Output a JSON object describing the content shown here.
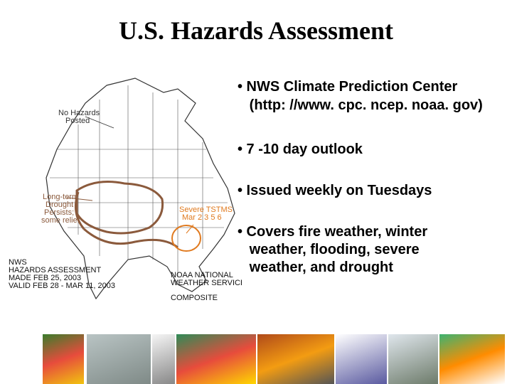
{
  "title": "U.S. Hazards Assessment",
  "bullets": [
    {
      "text": "• NWS Climate Prediction Center"
    },
    {
      "text": "   (http: //www. cpc. ncep. noaa. gov)"
    },
    {
      "text": "• 7 -10 day outlook"
    },
    {
      "text": "• Issued weekly on Tuesdays"
    },
    {
      "text": "• Covers fire weather, winter"
    },
    {
      "text": "   weather, flooding, severe"
    },
    {
      "text": "   weather, and drought"
    }
  ],
  "map": {
    "no_hazards": [
      "No Hazards",
      "Posted"
    ],
    "drought": [
      "Long-term",
      "Drought",
      "Persists;",
      "some relief"
    ],
    "severe": [
      "Severe TSTMS",
      "Mar 2 3 5 6"
    ],
    "nws_block": [
      "NWS",
      "HAZARDS ASSESSMENT",
      "MADE  FEB 25, 2003",
      "VALID  FEB 28 - MAR 11, 2003"
    ],
    "noaa": [
      "NOAA NATIONAL",
      "WEATHER SERVICE"
    ],
    "composite": "COMPOSITE",
    "colors": {
      "drought": "#8b5a3c",
      "severe": "#e07a1f",
      "land": "#ffffff",
      "border": "#333333"
    }
  },
  "thumbnails": [
    {
      "name": "radar-composite",
      "colors": [
        "#3a7d2c",
        "#e74c3c",
        "#f1c40f"
      ]
    },
    {
      "name": "cloud-sky",
      "colors": [
        "#b9c4c4",
        "#7f8a87"
      ]
    },
    {
      "name": "legend-chart",
      "colors": [
        "#f5f5f5",
        "#888888"
      ]
    },
    {
      "name": "radar-storm",
      "colors": [
        "#2e8b57",
        "#e74c3c",
        "#ffd700"
      ]
    },
    {
      "name": "wildfire-photo",
      "colors": [
        "#b04a1a",
        "#f39c12",
        "#555555"
      ]
    },
    {
      "name": "isobar-map",
      "colors": [
        "#ffffff",
        "#5a5aa0"
      ]
    },
    {
      "name": "tower-photo",
      "colors": [
        "#dfe6ec",
        "#6d7b6a"
      ]
    },
    {
      "name": "spread-map",
      "colors": [
        "#3cb371",
        "#ff8c00",
        "#ffffff"
      ]
    }
  ]
}
